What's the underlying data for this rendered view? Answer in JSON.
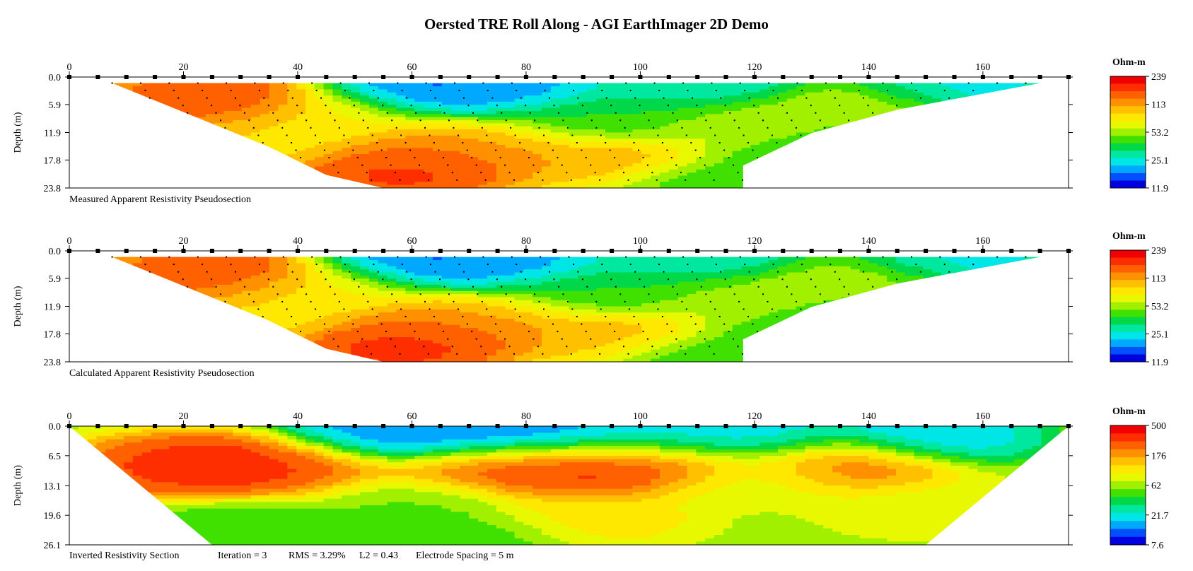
{
  "title": "Oersted TRE Roll Along - AGI EarthImager 2D Demo",
  "chart_data": [
    {
      "type": "heatmap",
      "caption": "Measured Apparent Resistivity Pseudosection",
      "ylabel": "Depth (m)",
      "xlim": [
        0,
        175
      ],
      "ylim": [
        0,
        23.8
      ],
      "x_ticks": [
        "0",
        "20",
        "40",
        "60",
        "80",
        "100",
        "120",
        "140",
        "160"
      ],
      "y_ticks": [
        "0.0",
        "5.9",
        "11.9",
        "17.8",
        "23.8"
      ],
      "y_tick_values": [
        0,
        5.9,
        11.9,
        17.8,
        23.8
      ],
      "colorbar": {
        "unit": "Ohm-m",
        "labels": [
          "239",
          "113",
          "53.2",
          "25.1",
          "11.9"
        ]
      },
      "has_data_points": true,
      "section_shape": "trapezoid",
      "anomalies": [
        {
          "x": 28,
          "depth": 4,
          "level": 0.93
        },
        {
          "x": 22,
          "depth": 7,
          "level": 0.85
        },
        {
          "x": 65,
          "depth": 17,
          "level": 0.88
        },
        {
          "x": 58,
          "depth": 21,
          "level": 0.92
        },
        {
          "x": 72,
          "depth": 14,
          "level": 0.72
        },
        {
          "x": 95,
          "depth": 18,
          "level": 0.75
        },
        {
          "x": 118,
          "depth": 10,
          "level": 0.66
        },
        {
          "x": 140,
          "depth": 7,
          "level": 0.58
        },
        {
          "x": 45,
          "depth": 8,
          "level": 0.62
        },
        {
          "x": 35,
          "depth": 12,
          "level": 0.66
        },
        {
          "x": 75,
          "depth": 3,
          "level": 0.12
        },
        {
          "x": 60,
          "depth": 2.5,
          "level": 0.08
        },
        {
          "x": 110,
          "depth": 3,
          "level": 0.22
        },
        {
          "x": 155,
          "depth": 3,
          "level": 0.2
        },
        {
          "x": 108,
          "depth": 8,
          "level": 0.38
        },
        {
          "x": 90,
          "depth": 9,
          "level": 0.4
        },
        {
          "x": 130,
          "depth": 14,
          "level": 0.36
        },
        {
          "x": 113,
          "depth": 22,
          "level": 0.38
        },
        {
          "x": 143,
          "depth": 11,
          "level": 0.4
        }
      ]
    },
    {
      "type": "heatmap",
      "caption": "Calculated Apparent Resistivity Pseudosection",
      "ylabel": "Depth (m)",
      "xlim": [
        0,
        175
      ],
      "ylim": [
        0,
        23.8
      ],
      "x_ticks": [
        "0",
        "20",
        "40",
        "60",
        "80",
        "100",
        "120",
        "140",
        "160"
      ],
      "y_ticks": [
        "0.0",
        "5.9",
        "11.9",
        "17.8",
        "23.8"
      ],
      "y_tick_values": [
        0,
        5.9,
        11.9,
        17.8,
        23.8
      ],
      "colorbar": {
        "unit": "Ohm-m",
        "labels": [
          "239",
          "113",
          "53.2",
          "25.1",
          "11.9"
        ]
      },
      "has_data_points": true,
      "section_shape": "trapezoid",
      "anomalies": [
        {
          "x": 28,
          "depth": 4,
          "level": 0.92
        },
        {
          "x": 22,
          "depth": 7,
          "level": 0.84
        },
        {
          "x": 65,
          "depth": 17,
          "level": 0.89
        },
        {
          "x": 58,
          "depth": 21,
          "level": 0.93
        },
        {
          "x": 72,
          "depth": 14,
          "level": 0.72
        },
        {
          "x": 95,
          "depth": 18,
          "level": 0.74
        },
        {
          "x": 118,
          "depth": 10,
          "level": 0.65
        },
        {
          "x": 140,
          "depth": 7,
          "level": 0.57
        },
        {
          "x": 45,
          "depth": 8,
          "level": 0.62
        },
        {
          "x": 35,
          "depth": 12,
          "level": 0.66
        },
        {
          "x": 75,
          "depth": 3,
          "level": 0.12
        },
        {
          "x": 60,
          "depth": 2.5,
          "level": 0.08
        },
        {
          "x": 110,
          "depth": 3,
          "level": 0.22
        },
        {
          "x": 155,
          "depth": 3,
          "level": 0.2
        },
        {
          "x": 108,
          "depth": 8,
          "level": 0.38
        },
        {
          "x": 90,
          "depth": 9,
          "level": 0.4
        },
        {
          "x": 130,
          "depth": 14,
          "level": 0.36
        },
        {
          "x": 113,
          "depth": 22,
          "level": 0.38
        },
        {
          "x": 143,
          "depth": 11,
          "level": 0.4
        }
      ]
    },
    {
      "type": "heatmap",
      "caption": "Inverted Resistivity Section",
      "annotations": [
        "Iteration = 3",
        "RMS = 3.29%",
        "L2 = 0.43",
        "Electrode Spacing = 5 m"
      ],
      "ylabel": "Depth (m)",
      "xlim": [
        0,
        175
      ],
      "ylim": [
        0,
        26.1
      ],
      "x_ticks": [
        "0",
        "20",
        "40",
        "60",
        "80",
        "100",
        "120",
        "140",
        "160"
      ],
      "y_ticks": [
        "0.0",
        "6.5",
        "13.1",
        "19.6",
        "26.1"
      ],
      "y_tick_values": [
        0,
        6.5,
        13.1,
        19.6,
        26.1
      ],
      "colorbar": {
        "unit": "Ohm-m",
        "labels": [
          "500",
          "176",
          "62",
          "21.7",
          "7.6"
        ]
      },
      "has_data_points": false,
      "section_shape": "inverted",
      "anomalies": [
        {
          "x": 28,
          "depth": 8.5,
          "level": 0.97
        },
        {
          "x": 18,
          "depth": 9,
          "level": 0.9
        },
        {
          "x": 40,
          "depth": 9,
          "level": 0.88
        },
        {
          "x": 100,
          "depth": 8.5,
          "level": 0.95
        },
        {
          "x": 85,
          "depth": 9.5,
          "level": 0.92
        },
        {
          "x": 72,
          "depth": 9,
          "level": 0.88
        },
        {
          "x": 136,
          "depth": 8.5,
          "level": 0.85
        },
        {
          "x": 65,
          "depth": 2,
          "level": 0.08
        },
        {
          "x": 80,
          "depth": 2,
          "level": 0.1
        },
        {
          "x": 55,
          "depth": 2,
          "level": 0.12
        },
        {
          "x": 100,
          "depth": 2.5,
          "level": 0.18
        },
        {
          "x": 150,
          "depth": 2,
          "level": 0.16
        },
        {
          "x": 120,
          "depth": 2,
          "level": 0.2
        },
        {
          "x": 60,
          "depth": 16,
          "level": 0.45
        },
        {
          "x": 120,
          "depth": 12,
          "level": 0.55
        },
        {
          "x": 90,
          "depth": 20,
          "level": 0.66
        },
        {
          "x": 30,
          "depth": 22,
          "level": 0.42
        },
        {
          "x": 150,
          "depth": 18,
          "level": 0.58
        },
        {
          "x": 70,
          "depth": 24,
          "level": 0.4
        }
      ]
    }
  ]
}
